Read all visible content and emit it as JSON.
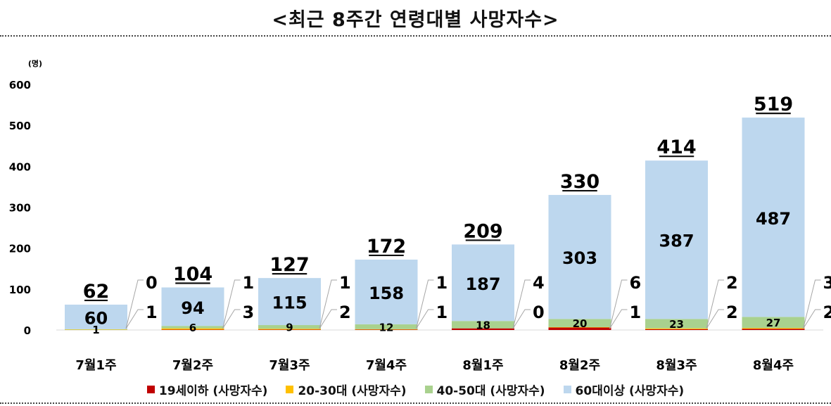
{
  "title": "<최근 8주간 연령대별 사망자수>",
  "chart_data": {
    "type": "bar",
    "stacked": true,
    "unit_label": "(명)",
    "ylim": [
      0,
      600
    ],
    "yticks": [
      0,
      100,
      200,
      300,
      400,
      500,
      600
    ],
    "grid": false,
    "legend_position": "bottom",
    "categories": [
      "7월1주",
      "7월2주",
      "7월3주",
      "7월4주",
      "8월1주",
      "8월2주",
      "8월3주",
      "8월4주"
    ],
    "totals": [
      62,
      104,
      127,
      172,
      209,
      330,
      414,
      519
    ],
    "series": [
      {
        "name": "19세이하 (사망자수)",
        "color": "#c00000",
        "values": [
          0,
          1,
          1,
          1,
          4,
          6,
          2,
          3
        ]
      },
      {
        "name": "20-30대 (사망자수)",
        "color": "#ffc000",
        "values": [
          1,
          3,
          2,
          1,
          0,
          1,
          2,
          2
        ]
      },
      {
        "name": "40-50대 (사망자수)",
        "color": "#a9d18e",
        "values": [
          1,
          6,
          9,
          12,
          18,
          20,
          23,
          27
        ]
      },
      {
        "name": "60대이상 (사망자수)",
        "color": "#bdd7ee",
        "values": [
          60,
          94,
          115,
          158,
          187,
          303,
          387,
          487
        ]
      }
    ]
  }
}
